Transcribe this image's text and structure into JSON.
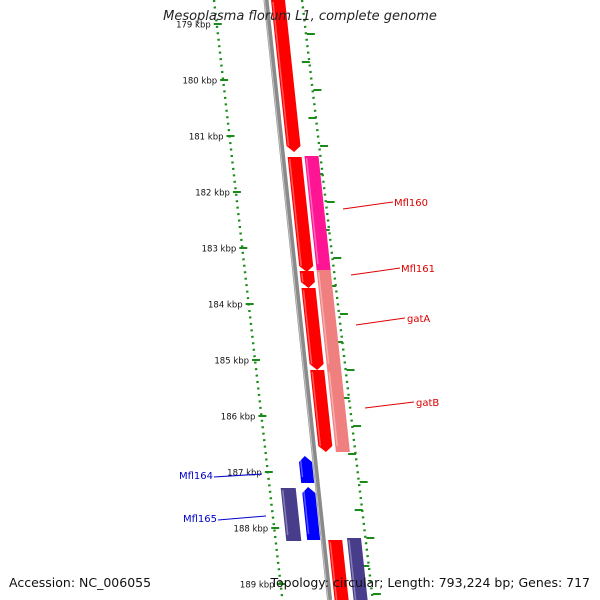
{
  "title": "Mesoplasma florum L1, complete genome",
  "accession_text": "Accession: NC_006055",
  "stats_text": "Topology: circular; Length: 793,224 bp; Genes: 717",
  "colors": {
    "backbone": "#8a8a8a",
    "ticks": "#1a8a1a",
    "forward_cds": "#ff0000",
    "red_label": "#dd0000",
    "blue_label": "#0000cc",
    "magenta_cds": "#ff1493",
    "salmon_cds": "#f08080",
    "reverse_cds": "#0000ff",
    "purple_cds": "#483d8b"
  },
  "scale": {
    "unit": "kbp",
    "tick_labels": [
      "179 kbp",
      "180 kbp",
      "181 kbp",
      "182 kbp",
      "183 kbp",
      "184 kbp",
      "185 kbp",
      "186 kbp",
      "187 kbp",
      "188 kbp",
      "189 kbp"
    ]
  },
  "labeled_genes": [
    {
      "name": "Mfl160",
      "side": "right",
      "color": "red"
    },
    {
      "name": "Mfl161",
      "side": "right",
      "color": "red"
    },
    {
      "name": "gatA",
      "side": "right",
      "color": "red"
    },
    {
      "name": "gatB",
      "side": "right",
      "color": "red"
    },
    {
      "name": "Mfl164",
      "side": "left",
      "color": "blue"
    },
    {
      "name": "Mfl165",
      "side": "left",
      "color": "blue"
    }
  ]
}
